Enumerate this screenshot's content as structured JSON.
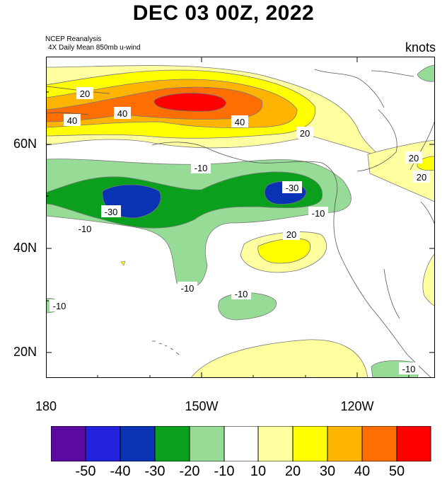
{
  "title": "DEC 03 00Z, 2022",
  "source_line1": "NCEP Reanalysis",
  "source_line2": "4X Daily Mean 850mb u-wind",
  "units": "knots",
  "lat_labels": [
    "60N",
    "40N",
    "20N"
  ],
  "lon_labels": [
    "180",
    "150W",
    "120W"
  ],
  "colorbar": {
    "labels": [
      "-50",
      "-40",
      "-30",
      "-20",
      "-10",
      "10",
      "20",
      "30",
      "40",
      "50"
    ],
    "colors": [
      "#5a0aa0",
      "#2323dc",
      "#0a32b4",
      "#0aa01e",
      "#96dc96",
      "#ffffff",
      "#ffffa0",
      "#ffff00",
      "#ffb400",
      "#ff6e00",
      "#ff0000"
    ]
  },
  "contour_labels": [
    {
      "text": "20"
    },
    {
      "text": "40"
    },
    {
      "text": "40"
    },
    {
      "text": "40"
    },
    {
      "text": "20"
    },
    {
      "text": "20"
    },
    {
      "text": "20"
    },
    {
      "text": "-10"
    },
    {
      "text": "-30"
    },
    {
      "text": "-30"
    },
    {
      "text": "-10"
    },
    {
      "text": "-10"
    },
    {
      "text": "20"
    },
    {
      "text": "-10"
    },
    {
      "text": "-10"
    },
    {
      "text": "-10"
    },
    {
      "text": "-10"
    }
  ]
}
